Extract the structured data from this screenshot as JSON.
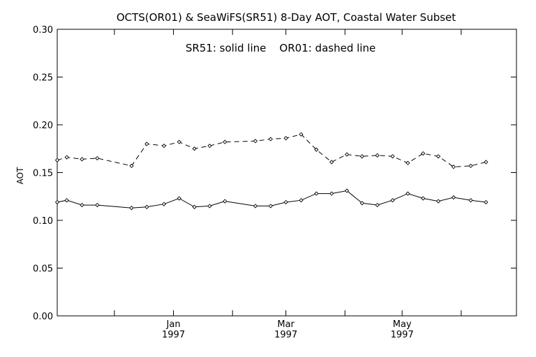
{
  "chart_data": {
    "type": "line",
    "title": "OCTS(OR01) & SeaWiFS(SR51) 8-Day AOT, Coastal Water Subset",
    "annotation": "SR51: solid line    OR01: dashed line",
    "ylabel": "AOT",
    "xlabel": "",
    "ylim": [
      0.0,
      0.3
    ],
    "y_ticks": [
      "0.00",
      "0.05",
      "0.10",
      "0.15",
      "0.20",
      "0.25",
      "0.30"
    ],
    "xlim": [
      "1996-11-01",
      "1997-06-30"
    ],
    "x_ticks": [
      {
        "date": "1997-01-01",
        "label": "Jan",
        "sublabel": "1997"
      },
      {
        "date": "1997-03-01",
        "label": "Mar",
        "sublabel": "1997"
      },
      {
        "date": "1997-05-01",
        "label": "May",
        "sublabel": "1997"
      }
    ],
    "grid": false,
    "series": [
      {
        "name": "SR51",
        "style": "solid",
        "points": [
          [
            "1996-11-01",
            0.119
          ],
          [
            "1996-11-06",
            0.121
          ],
          [
            "1996-11-14",
            0.116
          ],
          [
            "1996-11-22",
            0.116
          ],
          [
            "1996-12-10",
            0.113
          ],
          [
            "1996-12-18",
            0.114
          ],
          [
            "1996-12-27",
            0.117
          ],
          [
            "1997-01-04",
            0.123
          ],
          [
            "1997-01-12",
            0.114
          ],
          [
            "1997-01-20",
            0.115
          ],
          [
            "1997-01-28",
            0.12
          ],
          [
            "1997-02-13",
            0.115
          ],
          [
            "1997-02-21",
            0.115
          ],
          [
            "1997-03-01",
            0.119
          ],
          [
            "1997-03-09",
            0.121
          ],
          [
            "1997-03-17",
            0.128
          ],
          [
            "1997-03-25",
            0.128
          ],
          [
            "1997-04-02",
            0.131
          ],
          [
            "1997-04-10",
            0.118
          ],
          [
            "1997-04-18",
            0.116
          ],
          [
            "1997-04-26",
            0.121
          ],
          [
            "1997-05-04",
            0.128
          ],
          [
            "1997-05-12",
            0.123
          ],
          [
            "1997-05-20",
            0.12
          ],
          [
            "1997-05-28",
            0.124
          ],
          [
            "1997-06-06",
            0.121
          ],
          [
            "1997-06-14",
            0.119
          ]
        ]
      },
      {
        "name": "OR01",
        "style": "dashed",
        "points": [
          [
            "1996-11-01",
            0.163
          ],
          [
            "1996-11-06",
            0.166
          ],
          [
            "1996-11-14",
            0.164
          ],
          [
            "1996-11-22",
            0.165
          ],
          [
            "1996-12-10",
            0.157
          ],
          [
            "1996-12-18",
            0.18
          ],
          [
            "1996-12-27",
            0.178
          ],
          [
            "1997-01-04",
            0.182
          ],
          [
            "1997-01-12",
            0.175
          ],
          [
            "1997-01-20",
            0.178
          ],
          [
            "1997-01-28",
            0.182
          ],
          [
            "1997-02-13",
            0.183
          ],
          [
            "1997-02-21",
            0.185
          ],
          [
            "1997-03-01",
            0.186
          ],
          [
            "1997-03-09",
            0.19
          ],
          [
            "1997-03-17",
            0.174
          ],
          [
            "1997-03-25",
            0.161
          ],
          [
            "1997-04-02",
            0.169
          ],
          [
            "1997-04-10",
            0.167
          ],
          [
            "1997-04-18",
            0.168
          ],
          [
            "1997-04-26",
            0.167
          ],
          [
            "1997-05-04",
            0.16
          ],
          [
            "1997-05-12",
            0.17
          ],
          [
            "1997-05-20",
            0.167
          ],
          [
            "1997-05-28",
            0.156
          ],
          [
            "1997-06-06",
            0.157
          ],
          [
            "1997-06-14",
            0.161
          ]
        ]
      }
    ]
  }
}
